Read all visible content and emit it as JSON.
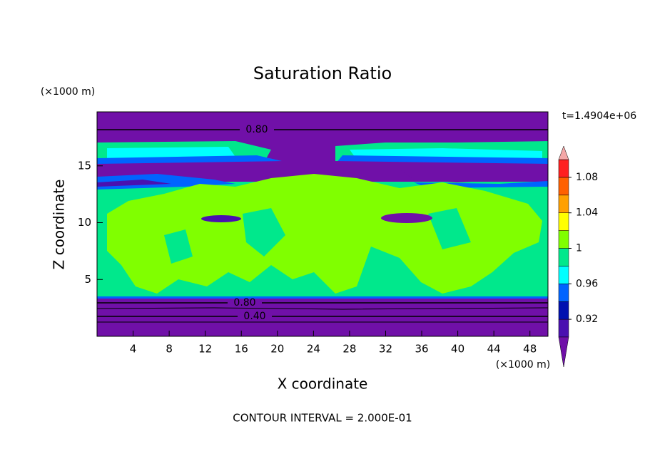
{
  "chart_data": {
    "type": "contour",
    "title": "Saturation Ratio",
    "xlabel": "X coordinate",
    "ylabel": "Z coordinate",
    "x_unit": "(×1000 m)",
    "y_unit": "(×1000 m)",
    "time_label": "t=1.4904e+06",
    "footer": "CONTOUR INTERVAL = 2.000E-01",
    "xlim": [
      0,
      50
    ],
    "ylim": [
      0,
      19.75
    ],
    "xticks": [
      4,
      8,
      12,
      16,
      20,
      24,
      28,
      32,
      36,
      40,
      44,
      48
    ],
    "yticks": [
      5,
      10,
      15
    ],
    "contour_labels": [
      {
        "value": 0.8,
        "label": "0.80"
      },
      {
        "value": 0.8,
        "label": "0.80"
      },
      {
        "value": 0.4,
        "label": "0.40"
      }
    ],
    "colorbar": {
      "levels": [
        0.9,
        0.92,
        0.94,
        0.96,
        0.98,
        1,
        1.02,
        1.04,
        1.06,
        1.08,
        1.1
      ],
      "colors": [
        "#7010a8",
        "#4a10b0",
        "#0010b0",
        "#0064ff",
        "#00ffff",
        "#00e88c",
        "#80ff00",
        "#ffff00",
        "#ffa000",
        "#ff6000",
        "#ff2020",
        "#f4a8a8"
      ],
      "ticks": [
        0.92,
        0.96,
        1,
        1.04,
        1.08
      ]
    }
  }
}
